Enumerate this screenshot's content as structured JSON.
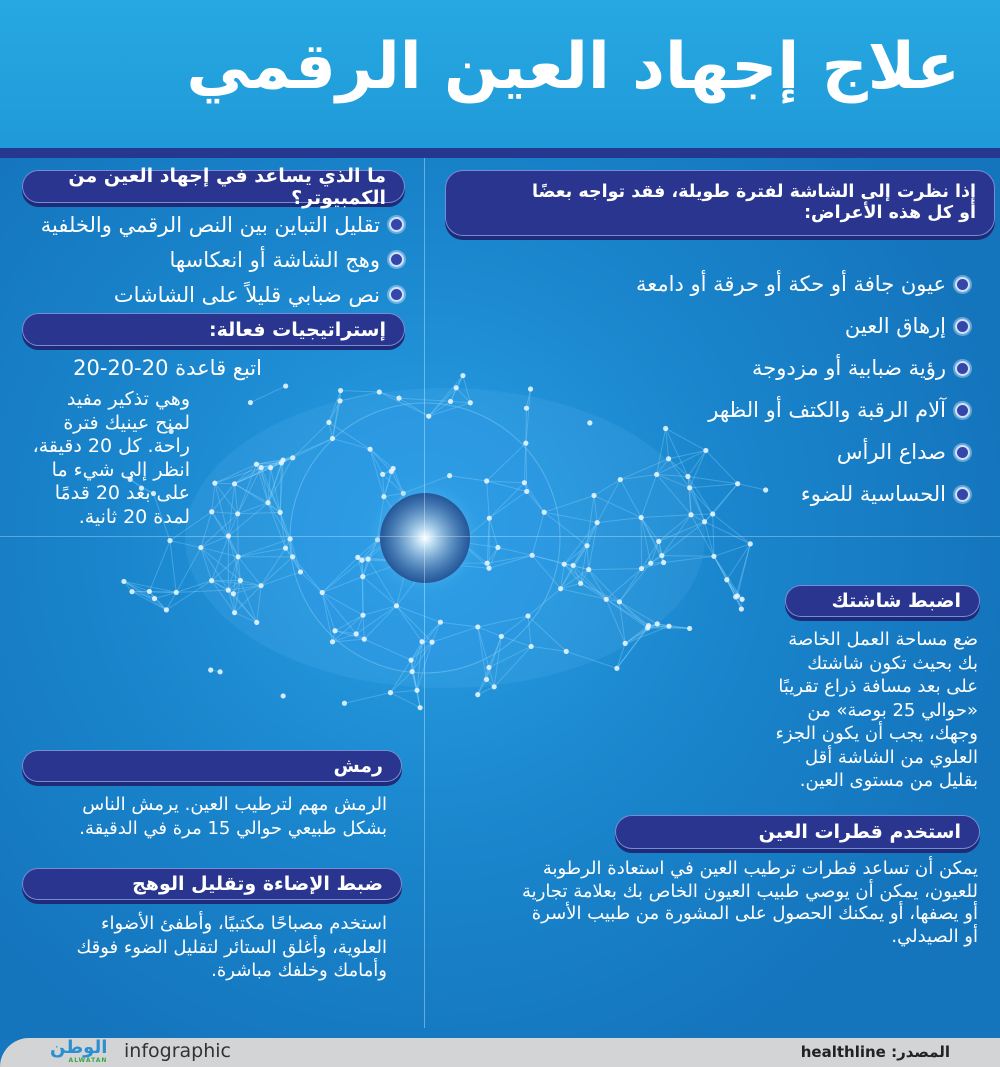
{
  "title": "علاج إجهاد العين الرقمي",
  "colors": {
    "header": "#27a8e2",
    "background": "#1577c0",
    "pill": "#29358f",
    "footer": "#d3d4d6"
  },
  "left": {
    "question_heading": "ما الذي يساعد في إجهاد العين من الكمبيوتر؟",
    "question_items": [
      "تقليل التباين بين النص الرقمي والخلفية",
      "وهج الشاشة أو انعكاسها",
      "نص ضبابي قليلاً على الشاشات"
    ],
    "strategies_heading": "إستراتيجيات فعالة:",
    "rule_title": "اتبع قاعدة 20-20-20",
    "rule_lines": [
      "وهي تذكير مفيد",
      "لمنح عينيك فترة",
      "راحة. كل 20 دقيقة،",
      "انظر إلى شيء ما",
      "على بعد 20 قدمًا",
      "لمدة 20 ثانية."
    ],
    "blink_heading": "رمش",
    "blink_lines": [
      "الرمش مهم لترطيب العين. يرمش الناس",
      "بشكل طبيعي حوالي 15 مرة في الدقيقة."
    ],
    "lighting_heading": "ضبط الإضاءة وتقليل الوهج",
    "lighting_lines": [
      "استخدم مصباحًا مكتبيًا، وأطفئ الأضواء",
      "العلوية، وأغلق الستائر لتقليل الضوء فوقك",
      "وأمامك وخلفك مباشرة."
    ]
  },
  "right": {
    "symptoms_heading": [
      "إذا نظرت إلى الشاشة لفترة طويلة، فقد تواجه بعضًا",
      "أو كل هذه الأعراض:"
    ],
    "symptoms": [
      "عيون جافة أو حكة أو حرقة أو دامعة",
      "إرهاق العين",
      "رؤية ضبابية أو مزدوجة",
      "آلام الرقبة والكتف أو الظهر",
      "صداع الرأس",
      "الحساسية للضوء"
    ],
    "screen_heading": "اضبط شاشتك",
    "screen_lines": [
      "ضع مساحة العمل الخاصة",
      "بك بحيث تكون شاشتك",
      "على بعد مسافة ذراع تقريبًا",
      "«حوالي 25 بوصة» من",
      "وجهك، يجب أن يكون الجزء",
      "العلوي من الشاشة أقل",
      "بقليل من مستوى العين."
    ],
    "drops_heading": "استخدم قطرات العين",
    "drops_lines": [
      "يمكن أن تساعد قطرات ترطيب العين في استعادة الرطوبة",
      "للعيون، يمكن أن يوصي طبيب العيون الخاص بك بعلامة تجارية",
      "أو يصفها، أو يمكنك الحصول على المشورة من طبيب الأسرة",
      "أو الصيدلي."
    ]
  },
  "footer": {
    "logo": "الوطن",
    "logo_sub": "ALWATAN",
    "label": "infographic",
    "source": "المصدر: healthline"
  }
}
